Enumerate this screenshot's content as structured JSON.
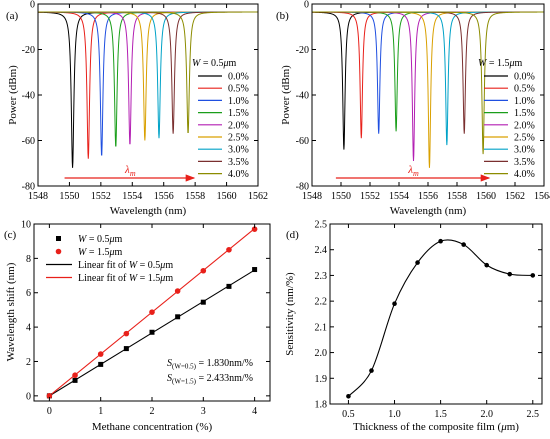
{
  "chart_data": [
    {
      "id": "a",
      "panel_label": "(a)",
      "type": "line",
      "xlabel": "Wavelength (nm)",
      "ylabel": "Power (dBm)",
      "xlim": [
        1548,
        1562
      ],
      "ylim": [
        -80,
        0
      ],
      "xticks": [
        1548,
        1550,
        1552,
        1554,
        1556,
        1558,
        1560,
        1562
      ],
      "yticks": [
        0,
        -20,
        -40,
        -60,
        -80
      ],
      "legend_title_parts": {
        "sym": "W",
        "rest": " = 0.5",
        "mu": "μ",
        "unit": "m"
      },
      "legend_position": "right",
      "arrow_label": {
        "sym": "λ",
        "sub": "m"
      },
      "series": [
        {
          "name": "0.0%",
          "color": "#000000",
          "dip_x": 1550.2,
          "dip_y": -72
        },
        {
          "name": "0.5%",
          "color": "#e8201a",
          "dip_x": 1551.2,
          "dip_y": -68
        },
        {
          "name": "1.0%",
          "color": "#1f4fe0",
          "dip_x": 1552.05,
          "dip_y": -67
        },
        {
          "name": "1.5%",
          "color": "#1a9e1a",
          "dip_x": 1552.95,
          "dip_y": -63
        },
        {
          "name": "2.0%",
          "color": "#b31fb3",
          "dip_x": 1553.85,
          "dip_y": -62
        },
        {
          "name": "2.5%",
          "color": "#d9a000",
          "dip_x": 1554.8,
          "dip_y": -60
        },
        {
          "name": "3.0%",
          "color": "#00a2c7",
          "dip_x": 1555.7,
          "dip_y": -59
        },
        {
          "name": "3.5%",
          "color": "#7a2f2f",
          "dip_x": 1556.6,
          "dip_y": -57
        },
        {
          "name": "4.0%",
          "color": "#8c8c00",
          "dip_x": 1557.55,
          "dip_y": -57
        }
      ]
    },
    {
      "id": "b",
      "panel_label": "(b)",
      "type": "line",
      "xlabel": "Wavelength (nm)",
      "ylabel": "Power (dBm)",
      "xlim": [
        1548,
        1564
      ],
      "ylim": [
        -80,
        0
      ],
      "xticks": [
        1548,
        1550,
        1552,
        1554,
        1556,
        1558,
        1560,
        1562,
        1564
      ],
      "yticks": [
        0,
        -20,
        -40,
        -60,
        -80
      ],
      "legend_title_parts": {
        "sym": "W",
        "rest": " = 1.5",
        "mu": "μ",
        "unit": "m"
      },
      "legend_position": "right",
      "arrow_label": {
        "sym": "λ",
        "sub": "m"
      },
      "series": [
        {
          "name": "0.0%",
          "color": "#000000",
          "dip_x": 1550.2,
          "dip_y": -64
        },
        {
          "name": "0.5%",
          "color": "#e8201a",
          "dip_x": 1551.4,
          "dip_y": -59
        },
        {
          "name": "1.0%",
          "color": "#1f4fe0",
          "dip_x": 1552.6,
          "dip_y": -57
        },
        {
          "name": "1.5%",
          "color": "#1a9e1a",
          "dip_x": 1553.8,
          "dip_y": -56
        },
        {
          "name": "2.0%",
          "color": "#b31fb3",
          "dip_x": 1555.0,
          "dip_y": -69
        },
        {
          "name": "2.5%",
          "color": "#d9a000",
          "dip_x": 1556.1,
          "dip_y": -72
        },
        {
          "name": "3.0%",
          "color": "#00a2c7",
          "dip_x": 1557.3,
          "dip_y": -62
        },
        {
          "name": "3.5%",
          "color": "#7a2f2f",
          "dip_x": 1558.5,
          "dip_y": -57
        },
        {
          "name": "4.0%",
          "color": "#8c8c00",
          "dip_x": 1559.8,
          "dip_y": -66
        }
      ]
    },
    {
      "id": "c",
      "panel_label": "(c)",
      "type": "scatter",
      "xlabel": "Methane concentration (%)",
      "ylabel": "Wavelength shift (nm)",
      "xlim": [
        -0.3,
        4.3
      ],
      "ylim": [
        -0.3,
        10
      ],
      "xticks": [
        0,
        1,
        2,
        3,
        4
      ],
      "yticks": [
        0,
        2,
        4,
        6,
        8,
        10
      ],
      "x": [
        0,
        0.5,
        1.0,
        1.5,
        2.0,
        2.5,
        3.0,
        3.5,
        4.0
      ],
      "legend_position": "top-left",
      "series": [
        {
          "name_parts": {
            "sym": "W",
            "rest": " = 0.5",
            "mu": "μ",
            "unit": "m"
          },
          "marker": "square",
          "color": "#000000",
          "values": [
            0,
            0.9,
            1.83,
            2.75,
            3.7,
            4.6,
            5.45,
            6.37,
            7.35
          ]
        },
        {
          "name_parts": {
            "sym": "W",
            "rest": " = 1.5",
            "mu": "μ",
            "unit": "m"
          },
          "marker": "circle",
          "color": "#e8201a",
          "values": [
            0,
            1.2,
            2.43,
            3.62,
            4.87,
            6.1,
            7.28,
            8.5,
            9.7
          ]
        }
      ],
      "fits": [
        {
          "name_parts": {
            "pre": "Linear fit of ",
            "sym": "W",
            "rest": " = 0.5",
            "mu": "μ",
            "unit": "m"
          },
          "color": "#000000",
          "slope": 1.83,
          "intercept": 0
        },
        {
          "name_parts": {
            "pre": "Linear fit of ",
            "sym": "W",
            "rest": " = 1.5",
            "mu": "μ",
            "unit": "m"
          },
          "color": "#e8201a",
          "slope": 2.433,
          "intercept": 0
        }
      ],
      "annotations": [
        {
          "sym": "S",
          "sub": "(W=0.5)",
          "value": " = 1.830nm/%"
        },
        {
          "sym": "S",
          "sub": "(W=1.5)",
          "value": " = 2.433nm/%"
        }
      ]
    },
    {
      "id": "d",
      "panel_label": "(d)",
      "type": "line",
      "xlabel_parts": {
        "pre": "Thickness of the composite film (",
        "mu": "μ",
        "post": "m)"
      },
      "ylabel": "Sensitivity (nm/%)",
      "xlim": [
        0.3,
        2.6
      ],
      "ylim": [
        1.8,
        2.5
      ],
      "xticks": [
        0.5,
        1.0,
        1.5,
        2.0,
        2.5
      ],
      "yticks": [
        1.8,
        1.9,
        2.0,
        2.1,
        2.2,
        2.3,
        2.4,
        2.5
      ],
      "x": [
        0.5,
        0.75,
        1.0,
        1.25,
        1.5,
        1.75,
        2.0,
        2.25,
        2.5
      ],
      "values": [
        1.83,
        1.93,
        2.19,
        2.35,
        2.433,
        2.42,
        2.34,
        2.305,
        2.3
      ]
    }
  ]
}
